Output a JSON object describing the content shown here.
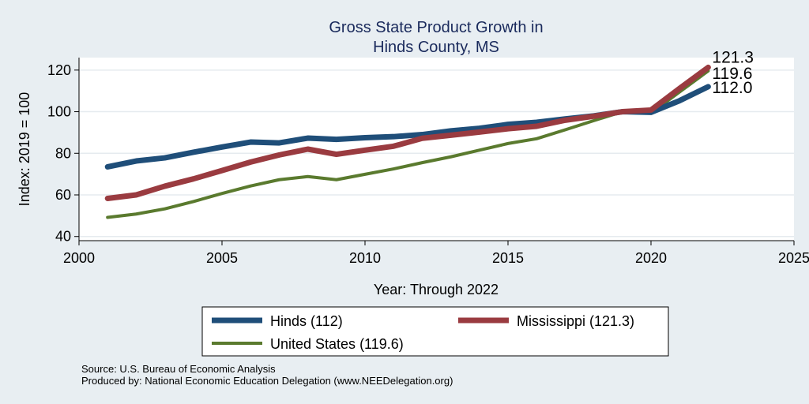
{
  "chart_data": {
    "type": "line",
    "title_lines": [
      "Gross State Product Growth in",
      "Hinds County, MS"
    ],
    "xlabel": "Year: Through 2022",
    "ylabel": "Index: 2019 = 100",
    "xlim": [
      2000,
      2025
    ],
    "ylim": [
      38,
      126
    ],
    "xticks": [
      2000,
      2005,
      2010,
      2015,
      2020,
      2025
    ],
    "yticks": [
      40,
      60,
      80,
      100,
      120
    ],
    "grid": true,
    "legend_position": "bottom",
    "x": [
      2001,
      2002,
      2003,
      2004,
      2005,
      2006,
      2007,
      2008,
      2009,
      2010,
      2011,
      2012,
      2013,
      2014,
      2015,
      2016,
      2017,
      2018,
      2019,
      2020,
      2021,
      2022
    ],
    "series": [
      {
        "name": "Hinds",
        "legend_label": "Hinds  (112)",
        "end_label": "112.0",
        "color": "#1f4e79",
        "width": 7,
        "values": [
          73.5,
          76.3,
          77.8,
          80.5,
          83.0,
          85.4,
          85.0,
          87.3,
          86.7,
          87.5,
          88.0,
          89.0,
          90.8,
          92.0,
          93.9,
          94.9,
          96.5,
          98.0,
          100.0,
          99.7,
          105.3,
          112.0
        ]
      },
      {
        "name": "Mississippi",
        "legend_label": "Mississippi (121.3)",
        "end_label": "121.3",
        "color": "#9a3b40",
        "width": 7,
        "values": [
          58.3,
          60.0,
          64.2,
          67.7,
          71.7,
          75.8,
          79.2,
          82.0,
          79.5,
          81.5,
          83.4,
          87.2,
          88.7,
          90.2,
          91.8,
          93.0,
          95.9,
          97.8,
          100.0,
          100.8,
          111.2,
          121.3
        ]
      },
      {
        "name": "United States",
        "legend_label": "United States (119.6)",
        "end_label": "119.6",
        "color": "#5a7a2e",
        "width": 4,
        "values": [
          49.2,
          50.8,
          53.3,
          56.8,
          60.7,
          64.3,
          67.3,
          68.8,
          67.3,
          69.9,
          72.5,
          75.5,
          78.3,
          81.5,
          84.7,
          87.0,
          91.3,
          95.7,
          100.0,
          99.3,
          109.5,
          119.6
        ]
      }
    ],
    "source_lines": [
      "Source: U.S. Bureau of Economic Analysis",
      "Produced by: National Economic Education Delegation (www.NEEDelegation.org)"
    ]
  }
}
